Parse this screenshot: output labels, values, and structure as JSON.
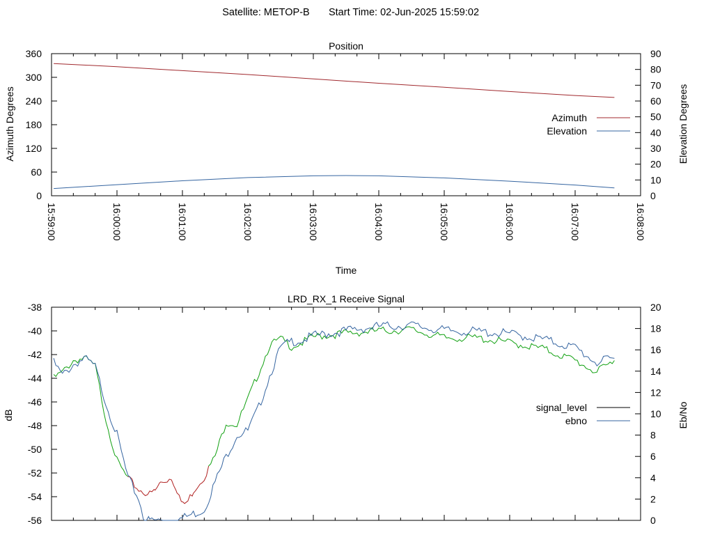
{
  "header": {
    "satellite_label": "Satellite: METOP-B",
    "start_time_label": "Start Time: 02-Jun-2025 15:59:02"
  },
  "chart_data": [
    {
      "type": "line",
      "title": "Position",
      "xlabel": "Time",
      "ylabel": "Azimuth Degrees",
      "y2label": "Elevation Degrees",
      "x_tick_labels": [
        "15:59:00",
        "16:00:00",
        "16:01:00",
        "16:02:00",
        "16:03:00",
        "16:04:00",
        "16:05:00",
        "16:06:00",
        "16:07:00",
        "16:08:00"
      ],
      "xlim": [
        "15:59:00",
        "16:08:00"
      ],
      "ylim": [
        0,
        360
      ],
      "y_ticks": [
        0,
        60,
        120,
        180,
        240,
        300,
        360
      ],
      "y2lim": [
        0,
        90
      ],
      "y2_ticks": [
        0,
        10,
        20,
        30,
        40,
        50,
        60,
        70,
        80,
        90
      ],
      "legend_position": "right",
      "series": [
        {
          "name": "Azimuth",
          "axis": "y1",
          "color": "#a0282d",
          "x": [
            "15:59:02",
            "16:00:00",
            "16:01:00",
            "16:02:00",
            "16:03:00",
            "16:04:00",
            "16:05:00",
            "16:06:00",
            "16:07:00",
            "16:07:36"
          ],
          "values": [
            335,
            327,
            317,
            307,
            296,
            285,
            275,
            264,
            254,
            249
          ]
        },
        {
          "name": "Elevation",
          "axis": "y2",
          "color": "#3464a0",
          "x": [
            "15:59:02",
            "16:00:00",
            "16:01:00",
            "16:02:00",
            "16:03:00",
            "16:03:30",
            "16:04:00",
            "16:05:00",
            "16:06:00",
            "16:07:00",
            "16:07:36"
          ],
          "values": [
            4.6,
            7.0,
            9.5,
            11.5,
            12.6,
            12.8,
            12.6,
            11.3,
            9.2,
            6.8,
            5.0
          ]
        }
      ]
    },
    {
      "type": "line",
      "title": "LRD_RX_1 Receive Signal",
      "ylabel": "dB",
      "y2label": "Eb/No",
      "xlim": [
        "15:59:00",
        "16:08:00"
      ],
      "ylim": [
        -56,
        -38
      ],
      "y_ticks": [
        -56,
        -54,
        -52,
        -50,
        -48,
        -46,
        -44,
        -42,
        -40,
        -38
      ],
      "y2lim": [
        0,
        20
      ],
      "y2_ticks": [
        0,
        2,
        4,
        6,
        8,
        10,
        12,
        14,
        16,
        18,
        20
      ],
      "legend_position": "right",
      "series": [
        {
          "name": "signal_level",
          "axis": "y1",
          "color": "#000000",
          "segment_colors": {
            "low": "#b02020",
            "normal": "#10a010"
          },
          "x": [
            "15:59:02",
            "15:59:10",
            "15:59:20",
            "15:59:30",
            "15:59:40",
            "15:59:50",
            "16:00:00",
            "16:00:10",
            "16:00:20",
            "16:00:30",
            "16:00:35",
            "16:00:40",
            "16:00:50",
            "16:00:55",
            "16:01:00",
            "16:01:05",
            "16:01:10",
            "16:01:20",
            "16:01:30",
            "16:01:40",
            "16:01:50",
            "16:02:00",
            "16:02:10",
            "16:02:20",
            "16:02:30",
            "16:02:40",
            "16:02:50",
            "16:03:00",
            "16:03:30",
            "16:04:00",
            "16:04:30",
            "16:05:00",
            "16:05:30",
            "16:06:00",
            "16:06:30",
            "16:07:00",
            "16:07:20",
            "16:07:36"
          ],
          "values": [
            -44.0,
            -43.5,
            -42.5,
            -42.3,
            -43.0,
            -47.5,
            -51.0,
            -52.5,
            -53.4,
            -53.8,
            -53.5,
            -52.8,
            -52.4,
            -53.4,
            -54.7,
            -54.4,
            -53.5,
            -52.3,
            -50.6,
            -47.7,
            -47.9,
            -45.8,
            -43.5,
            -41.2,
            -40.7,
            -41.3,
            -41.0,
            -40.5,
            -40.2,
            -40.0,
            -39.9,
            -40.6,
            -40.6,
            -41.0,
            -41.5,
            -42.5,
            -43.5,
            -42.5
          ]
        },
        {
          "name": "ebno",
          "axis": "y2",
          "color": "#3464a0",
          "x": [
            "15:59:02",
            "15:59:10",
            "15:59:20",
            "15:59:30",
            "15:59:40",
            "15:59:50",
            "16:00:00",
            "16:00:10",
            "16:00:20",
            "16:00:25",
            "16:00:30",
            "16:00:40",
            "16:00:50",
            "16:01:00",
            "16:01:10",
            "16:01:20",
            "16:01:30",
            "16:01:40",
            "16:01:50",
            "16:02:00",
            "16:02:10",
            "16:02:20",
            "16:02:30",
            "16:02:40",
            "16:02:50",
            "16:03:00",
            "16:03:30",
            "16:04:00",
            "16:04:30",
            "16:05:00",
            "16:05:30",
            "16:06:00",
            "16:06:30",
            "16:07:00",
            "16:07:20",
            "16:07:36"
          ],
          "values": [
            14.8,
            13.6,
            14.6,
            15.2,
            14.4,
            11.0,
            8.0,
            4.0,
            2.0,
            0.0,
            0.0,
            0.0,
            0.0,
            0.2,
            0.6,
            1.0,
            3.6,
            6.0,
            8.0,
            8.4,
            10.6,
            13.6,
            16.2,
            16.8,
            16.9,
            17.3,
            17.8,
            18.2,
            18.3,
            17.8,
            17.7,
            17.5,
            17.0,
            16.2,
            14.8,
            15.2
          ]
        }
      ]
    }
  ]
}
